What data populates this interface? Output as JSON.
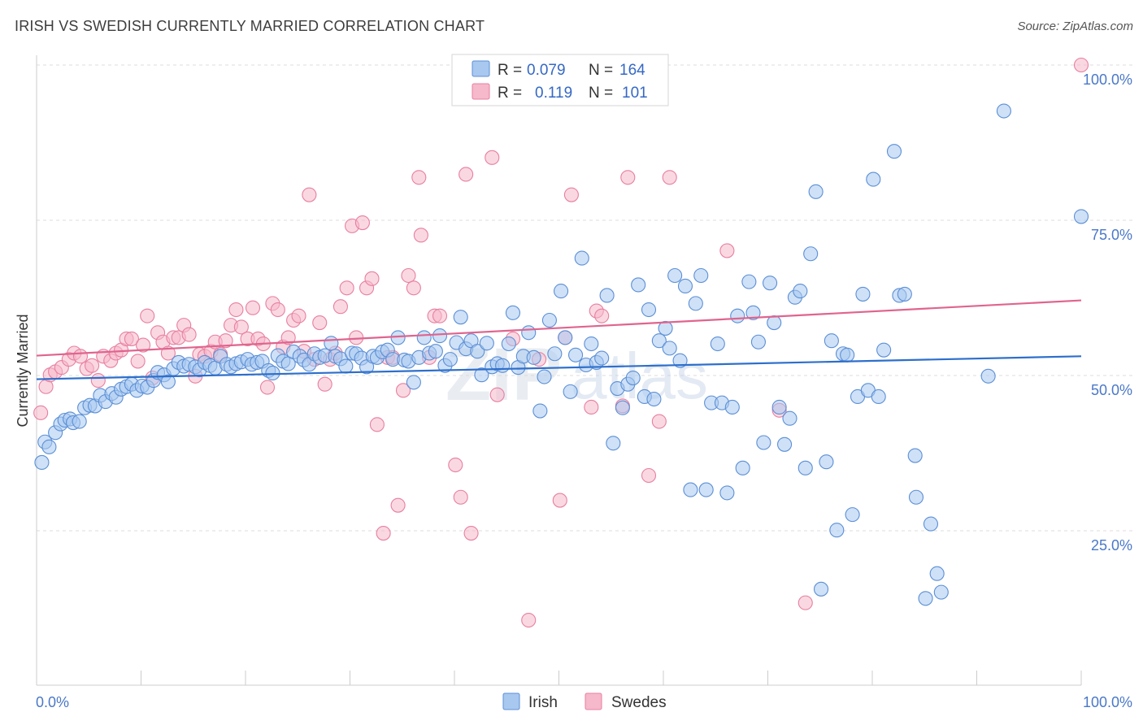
{
  "title": "IRISH VS SWEDISH CURRENTLY MARRIED CORRELATION CHART",
  "source": "Source: ZipAtlas.com",
  "watermark": {
    "zip": "ZIP",
    "atlas": "atlas"
  },
  "legend": {
    "rows": [
      {
        "r_label": "R =",
        "r_value": "0.079",
        "n_label": "N =",
        "n_value": "164"
      },
      {
        "r_label": "R =",
        "r_value": "0.119",
        "n_label": "N =",
        "n_value": "101"
      }
    ]
  },
  "bottom_legend": [
    "Irish",
    "Swedes"
  ],
  "chart_data": {
    "type": "scatter",
    "title": "IRISH VS SWEDISH CURRENTLY MARRIED CORRELATION CHART",
    "xlabel": "",
    "ylabel": "Currently Married",
    "xlim": [
      0,
      100
    ],
    "ylim": [
      0,
      100
    ],
    "x_tick_labels": [
      "0.0%",
      "100.0%"
    ],
    "y_tick_values": [
      100,
      75,
      50,
      25
    ],
    "y_tick_labels": [
      "100.0%",
      "75.0%",
      "50.0%",
      "25.0%"
    ],
    "colors": {
      "irish_fill": "#a8c8f0",
      "irish_stroke": "#5b8fd6",
      "irish_line": "#2d6fcc",
      "swedes_fill": "#f6b8cb",
      "swedes_stroke": "#e87fa0",
      "swedes_line": "#e0648e",
      "grid": "#dddddd",
      "axis": "#cccccc"
    },
    "series": [
      {
        "name": "Irish",
        "R": 0.079,
        "N": 164,
        "trend": {
          "x": [
            0,
            100
          ],
          "y": [
            49.4,
            53.1
          ]
        },
        "points": [
          [
            0.5,
            36
          ],
          [
            0.8,
            39.3
          ],
          [
            1.2,
            38.5
          ],
          [
            1.8,
            40.8
          ],
          [
            2.3,
            42.2
          ],
          [
            2.7,
            42.8
          ],
          [
            3.2,
            43
          ],
          [
            3.5,
            42.4
          ],
          [
            4.1,
            42.6
          ],
          [
            4.6,
            44.8
          ],
          [
            5.1,
            45.2
          ],
          [
            5.6,
            45.1
          ],
          [
            6.1,
            46.8
          ],
          [
            6.6,
            45.8
          ],
          [
            7.2,
            47.1
          ],
          [
            7.6,
            46.5
          ],
          [
            8.1,
            47.8
          ],
          [
            8.6,
            48.2
          ],
          [
            9.1,
            48.6
          ],
          [
            9.6,
            47.6
          ],
          [
            10.1,
            48.3
          ],
          [
            10.6,
            48.1
          ],
          [
            11.2,
            49.2
          ],
          [
            11.6,
            50.5
          ],
          [
            12.2,
            50.1
          ],
          [
            12.6,
            49
          ],
          [
            13.1,
            51.1
          ],
          [
            13.6,
            52.1
          ],
          [
            14.1,
            51.5
          ],
          [
            14.6,
            51.8
          ],
          [
            15.2,
            51.4
          ],
          [
            15.6,
            50.9
          ],
          [
            16.1,
            52.1
          ],
          [
            16.6,
            51.6
          ],
          [
            17.1,
            51.2
          ],
          [
            17.6,
            53.1
          ],
          [
            18.2,
            51.8
          ],
          [
            18.6,
            51.4
          ],
          [
            19.1,
            51.9
          ],
          [
            19.6,
            52.2
          ],
          [
            20.2,
            52.6
          ],
          [
            20.6,
            51.8
          ],
          [
            21.1,
            52.1
          ],
          [
            21.6,
            52.3
          ],
          [
            22.2,
            50.8
          ],
          [
            22.6,
            50.4
          ],
          [
            23.1,
            53.2
          ],
          [
            23.6,
            52.3
          ],
          [
            24.1,
            51.9
          ],
          [
            24.6,
            53.8
          ],
          [
            25.2,
            53.1
          ],
          [
            25.6,
            52.5
          ],
          [
            26.1,
            51.8
          ],
          [
            26.6,
            53.5
          ],
          [
            27.1,
            52.9
          ],
          [
            27.6,
            53.2
          ],
          [
            28.2,
            55.2
          ],
          [
            28.6,
            53.1
          ],
          [
            29.1,
            52.7
          ],
          [
            29.6,
            51.5
          ],
          [
            30.2,
            53.6
          ],
          [
            30.6,
            53.5
          ],
          [
            31.1,
            52.8
          ],
          [
            31.6,
            51.4
          ],
          [
            32.2,
            53.1
          ],
          [
            32.6,
            52.9
          ],
          [
            33.1,
            53.8
          ],
          [
            33.6,
            54.1
          ],
          [
            34.1,
            52.6
          ],
          [
            34.6,
            56.1
          ],
          [
            35.2,
            52.5
          ],
          [
            35.6,
            52.3
          ],
          [
            36.1,
            48.9
          ],
          [
            36.6,
            52.9
          ],
          [
            37.1,
            56.1
          ],
          [
            37.6,
            53.6
          ],
          [
            38.2,
            53.9
          ],
          [
            38.6,
            56.4
          ],
          [
            39.1,
            51.6
          ],
          [
            39.6,
            52.6
          ],
          [
            40.2,
            55.3
          ],
          [
            40.6,
            59.4
          ],
          [
            41.1,
            54.3
          ],
          [
            41.6,
            55.6
          ],
          [
            42.2,
            53.9
          ],
          [
            42.6,
            50.1
          ],
          [
            43.1,
            55.2
          ],
          [
            43.6,
            51.4
          ],
          [
            44.1,
            51.9
          ],
          [
            44.6,
            51.6
          ],
          [
            45.2,
            55.1
          ],
          [
            45.6,
            60.1
          ],
          [
            46.1,
            51.3
          ],
          [
            46.6,
            53.1
          ],
          [
            47.1,
            56.9
          ],
          [
            47.6,
            52.9
          ],
          [
            48.2,
            44.3
          ],
          [
            48.6,
            49.8
          ],
          [
            49.1,
            58.9
          ],
          [
            49.6,
            53.5
          ],
          [
            50.2,
            63.6
          ],
          [
            50.6,
            56.1
          ],
          [
            51.1,
            47.4
          ],
          [
            51.6,
            53.3
          ],
          [
            52.2,
            68.9
          ],
          [
            52.6,
            51.7
          ],
          [
            53.1,
            55.1
          ],
          [
            53.6,
            52.1
          ],
          [
            54.1,
            52.8
          ],
          [
            54.6,
            62.9
          ],
          [
            55.2,
            39.1
          ],
          [
            55.6,
            47.9
          ],
          [
            56.1,
            44.8
          ],
          [
            56.6,
            48.6
          ],
          [
            57.1,
            49.6
          ],
          [
            57.6,
            64.6
          ],
          [
            58.2,
            46.6
          ],
          [
            58.6,
            60.6
          ],
          [
            59.1,
            46.2
          ],
          [
            59.6,
            55.6
          ],
          [
            60.2,
            57.6
          ],
          [
            60.6,
            54.4
          ],
          [
            61.1,
            66.1
          ],
          [
            61.6,
            52.4
          ],
          [
            62.1,
            64.4
          ],
          [
            62.6,
            31.6
          ],
          [
            63.1,
            61.6
          ],
          [
            63.6,
            66.1
          ],
          [
            64.1,
            31.6
          ],
          [
            64.6,
            45.6
          ],
          [
            65.2,
            55.1
          ],
          [
            65.6,
            45.6
          ],
          [
            66.1,
            31.1
          ],
          [
            66.6,
            44.9
          ],
          [
            67.1,
            59.6
          ],
          [
            67.6,
            35.1
          ],
          [
            68.2,
            65.1
          ],
          [
            68.6,
            60.1
          ],
          [
            69.1,
            55.4
          ],
          [
            69.6,
            39.2
          ],
          [
            70.2,
            64.9
          ],
          [
            70.6,
            58.5
          ],
          [
            71.1,
            44.9
          ],
          [
            71.6,
            38.9
          ],
          [
            72.1,
            43.1
          ],
          [
            72.6,
            62.6
          ],
          [
            73.1,
            63.6
          ],
          [
            73.6,
            35.1
          ],
          [
            74.1,
            69.6
          ],
          [
            74.6,
            79.6
          ],
          [
            75.1,
            15.6
          ],
          [
            75.6,
            36.1
          ],
          [
            76.1,
            55.6
          ],
          [
            76.6,
            25.1
          ],
          [
            77.2,
            53.5
          ],
          [
            77.6,
            53.3
          ],
          [
            78.1,
            27.6
          ],
          [
            78.6,
            46.6
          ],
          [
            79.1,
            63.1
          ],
          [
            79.6,
            47.6
          ],
          [
            80.1,
            81.6
          ],
          [
            80.6,
            46.6
          ],
          [
            81.1,
            54.1
          ],
          [
            82.1,
            86.1
          ],
          [
            82.6,
            62.9
          ],
          [
            83.1,
            63.1
          ],
          [
            84.1,
            37.1
          ],
          [
            84.2,
            30.4
          ],
          [
            85.1,
            14.1
          ],
          [
            85.6,
            26.1
          ],
          [
            86.2,
            18.1
          ],
          [
            86.6,
            15.1
          ],
          [
            91.1,
            49.9
          ],
          [
            92.6,
            92.6
          ],
          [
            100,
            75.6
          ]
        ]
      },
      {
        "name": "Swedes",
        "R": 0.119,
        "N": 101,
        "trend": {
          "x": [
            0,
            100
          ],
          "y": [
            53.2,
            62.1
          ]
        },
        "points": [
          [
            0.4,
            44
          ],
          [
            0.9,
            48.2
          ],
          [
            1.3,
            50.1
          ],
          [
            1.8,
            50.6
          ],
          [
            2.4,
            51.3
          ],
          [
            3.1,
            52.6
          ],
          [
            3.6,
            53.6
          ],
          [
            4.2,
            53.1
          ],
          [
            4.8,
            51.1
          ],
          [
            5.3,
            51.6
          ],
          [
            5.9,
            49.2
          ],
          [
            6.4,
            53.1
          ],
          [
            7.1,
            52.4
          ],
          [
            7.6,
            53.6
          ],
          [
            8.1,
            54.1
          ],
          [
            8.6,
            55.9
          ],
          [
            9.1,
            55.9
          ],
          [
            9.7,
            52.3
          ],
          [
            10.2,
            54.9
          ],
          [
            10.6,
            59.6
          ],
          [
            11.1,
            49.6
          ],
          [
            11.6,
            56.9
          ],
          [
            12.1,
            55.4
          ],
          [
            12.6,
            53.6
          ],
          [
            13.1,
            56.1
          ],
          [
            13.6,
            56.1
          ],
          [
            14.1,
            58.1
          ],
          [
            14.6,
            56.6
          ],
          [
            15.2,
            49.9
          ],
          [
            15.6,
            53.4
          ],
          [
            16.1,
            53.1
          ],
          [
            16.7,
            53.9
          ],
          [
            17.1,
            55.4
          ],
          [
            17.6,
            53.4
          ],
          [
            18.1,
            55.6
          ],
          [
            18.6,
            58.1
          ],
          [
            19.1,
            60.6
          ],
          [
            19.6,
            57.8
          ],
          [
            20.2,
            55.9
          ],
          [
            20.7,
            60.9
          ],
          [
            21.2,
            55.9
          ],
          [
            21.7,
            55.1
          ],
          [
            22.1,
            48.1
          ],
          [
            22.6,
            61.6
          ],
          [
            23.1,
            60.6
          ],
          [
            23.6,
            54.6
          ],
          [
            24.1,
            56.1
          ],
          [
            24.6,
            58.9
          ],
          [
            25.1,
            59.6
          ],
          [
            25.6,
            53.9
          ],
          [
            26.1,
            79.1
          ],
          [
            26.6,
            52.6
          ],
          [
            27.1,
            58.5
          ],
          [
            27.6,
            48.6
          ],
          [
            28.1,
            52.6
          ],
          [
            28.6,
            53.6
          ],
          [
            29.1,
            61.1
          ],
          [
            29.7,
            64.1
          ],
          [
            30.2,
            74.1
          ],
          [
            30.6,
            56.1
          ],
          [
            31.2,
            74.6
          ],
          [
            31.6,
            64.1
          ],
          [
            32.1,
            65.6
          ],
          [
            32.6,
            42.1
          ],
          [
            33.2,
            24.6
          ],
          [
            33.6,
            52.9
          ],
          [
            34.1,
            52.9
          ],
          [
            34.6,
            29.1
          ],
          [
            35.1,
            47.6
          ],
          [
            35.6,
            66.1
          ],
          [
            36.1,
            64.1
          ],
          [
            36.6,
            81.9
          ],
          [
            36.8,
            72.6
          ],
          [
            37.6,
            52.9
          ],
          [
            38.1,
            59.6
          ],
          [
            38.6,
            59.6
          ],
          [
            40.1,
            35.6
          ],
          [
            40.6,
            30.4
          ],
          [
            41.1,
            82.4
          ],
          [
            41.6,
            24.6
          ],
          [
            43.6,
            85.1
          ],
          [
            44.1,
            46.9
          ],
          [
            45.6,
            55.9
          ],
          [
            47.1,
            10.6
          ],
          [
            48.1,
            52.6
          ],
          [
            50.1,
            29.9
          ],
          [
            50.6,
            56.1
          ],
          [
            51.2,
            79.1
          ],
          [
            53.1,
            44.9
          ],
          [
            53.6,
            60.4
          ],
          [
            54.1,
            59.6
          ],
          [
            56.1,
            45.1
          ],
          [
            56.6,
            81.9
          ],
          [
            58.6,
            33.9
          ],
          [
            59.6,
            42.6
          ],
          [
            60.6,
            81.9
          ],
          [
            66.1,
            70.1
          ],
          [
            71.1,
            44.4
          ],
          [
            73.6,
            13.4
          ],
          [
            100,
            100
          ]
        ]
      }
    ]
  }
}
